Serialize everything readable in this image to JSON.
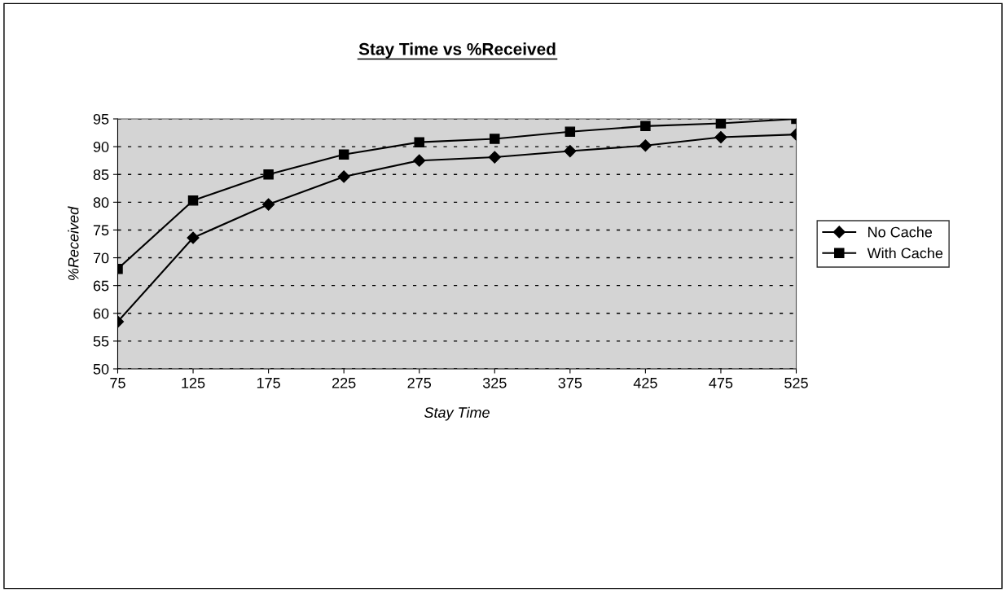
{
  "chart_data": {
    "type": "line",
    "title": "Stay Time vs %Received",
    "xlabel": "Stay Time",
    "ylabel": "%Received",
    "categories": [
      "75",
      "125",
      "175",
      "225",
      "275",
      "325",
      "375",
      "425",
      "475",
      "525"
    ],
    "series": [
      {
        "name": "No Cache",
        "color": "#000000",
        "marker": "diamond",
        "values": [
          58.5,
          73.6,
          79.6,
          84.6,
          87.5,
          88.1,
          89.2,
          90.2,
          91.7,
          92.2
        ]
      },
      {
        "name": "With Cache",
        "color": "#000000",
        "marker": "square",
        "values": [
          68.0,
          80.3,
          85.0,
          88.6,
          90.8,
          91.4,
          92.7,
          93.7,
          94.2,
          95.0
        ]
      }
    ],
    "ylim": [
      50,
      95
    ],
    "yticks": [
      50,
      55,
      60,
      65,
      70,
      75,
      80,
      85,
      90,
      95
    ],
    "grid": "y",
    "legend": "right",
    "line_style": "solid"
  }
}
